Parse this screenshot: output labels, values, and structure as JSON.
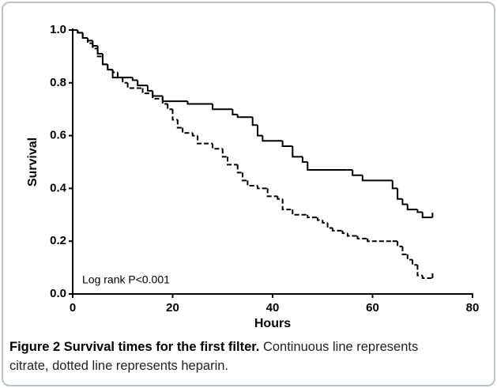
{
  "chart_data": {
    "type": "step",
    "x_label": "Hours",
    "y_label": "Survival",
    "annotation": "Log rank P<0.001",
    "xlim": [
      0,
      80
    ],
    "xticks": [
      0,
      20,
      40,
      60,
      80
    ],
    "ylim": [
      0,
      1
    ],
    "yticks": [
      {
        "value": 0,
        "label": "0.0"
      },
      {
        "value": 0.2,
        "label": "0.2"
      },
      {
        "value": 0.4,
        "label": "0.4"
      },
      {
        "value": 0.6,
        "label": "0.6"
      },
      {
        "value": 0.8,
        "label": "0.8"
      },
      {
        "value": 1,
        "label": "1.0"
      }
    ],
    "series": [
      {
        "color": "#000000",
        "line_style": "solid",
        "x": [
          0,
          1,
          2,
          3,
          4,
          5,
          6,
          7,
          8,
          12,
          13,
          15,
          16,
          18,
          23,
          28,
          32,
          33,
          36,
          37,
          38,
          42,
          44,
          46,
          47,
          55,
          56,
          58,
          64,
          65,
          66,
          67,
          69,
          70,
          72
        ],
        "values": [
          1.0,
          0.99,
          0.97,
          0.96,
          0.94,
          0.91,
          0.87,
          0.85,
          0.82,
          0.81,
          0.79,
          0.77,
          0.75,
          0.73,
          0.72,
          0.7,
          0.68,
          0.67,
          0.64,
          0.6,
          0.58,
          0.56,
          0.52,
          0.5,
          0.47,
          0.47,
          0.45,
          0.43,
          0.4,
          0.36,
          0.34,
          0.32,
          0.31,
          0.29,
          0.29
        ]
      },
      {
        "color": "#000000",
        "line_style": "dashed",
        "x": [
          0,
          1,
          2,
          3,
          4,
          5,
          6,
          7,
          8,
          9,
          10,
          11,
          14,
          16,
          18,
          19,
          20,
          21,
          22,
          24,
          25,
          28,
          30,
          31,
          33,
          34,
          35,
          37,
          39,
          41,
          42,
          44,
          47,
          49,
          50,
          51,
          52,
          54,
          55,
          57,
          59,
          64,
          65,
          66,
          67,
          68,
          69,
          70,
          72
        ],
        "values": [
          1.0,
          0.99,
          0.97,
          0.95,
          0.93,
          0.9,
          0.87,
          0.85,
          0.84,
          0.82,
          0.8,
          0.78,
          0.76,
          0.74,
          0.72,
          0.7,
          0.66,
          0.63,
          0.61,
          0.6,
          0.57,
          0.55,
          0.52,
          0.49,
          0.46,
          0.43,
          0.41,
          0.4,
          0.37,
          0.36,
          0.32,
          0.3,
          0.29,
          0.28,
          0.27,
          0.25,
          0.24,
          0.23,
          0.22,
          0.21,
          0.2,
          0.2,
          0.18,
          0.15,
          0.13,
          0.11,
          0.07,
          0.06,
          0.06
        ]
      }
    ]
  },
  "caption": {
    "title": "Figure 2 Survival times for the first filter.",
    "text": "Continuous line represents citrate, dotted line represents heparin."
  }
}
